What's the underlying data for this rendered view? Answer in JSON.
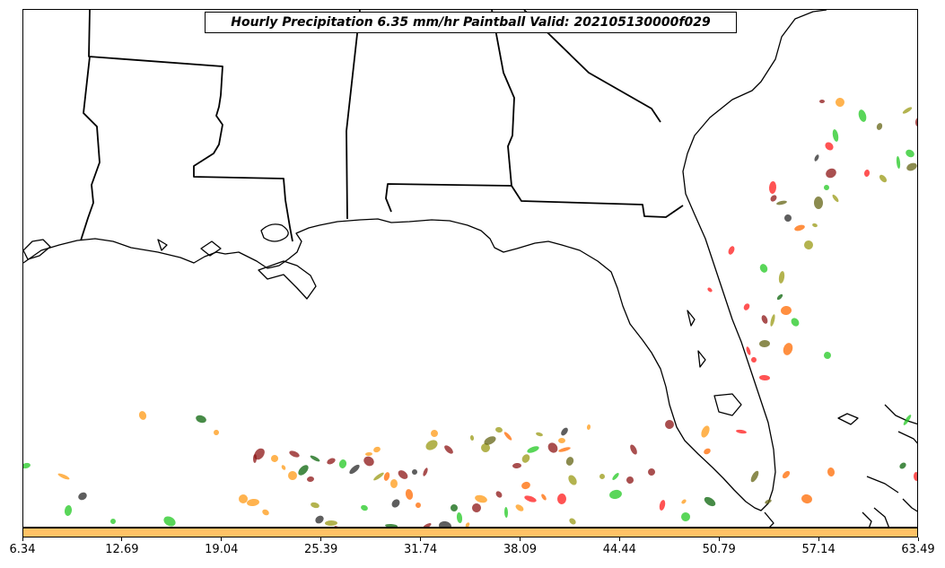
{
  "title": "Hourly Precipitation 6.35 mm/hr Paintball Valid: 202105130000f029",
  "colorbar": {
    "color": "#ffc266",
    "ticks": [
      "6.34",
      "12.69",
      "19.04",
      "25.39",
      "31.74",
      "38.09",
      "44.44",
      "50.79",
      "57.14",
      "63.49"
    ]
  },
  "map": {
    "region": "Southeastern United States and Gulf of Mexico",
    "basemap": [
      "coastlines",
      "state-borders"
    ],
    "paintball_colors": [
      "#22c822",
      "#ff9a14",
      "#8c1414",
      "#282828",
      "#0a640a",
      "#ff1a1a",
      "#9a9a14",
      "#646414",
      "#ff6a00"
    ]
  }
}
